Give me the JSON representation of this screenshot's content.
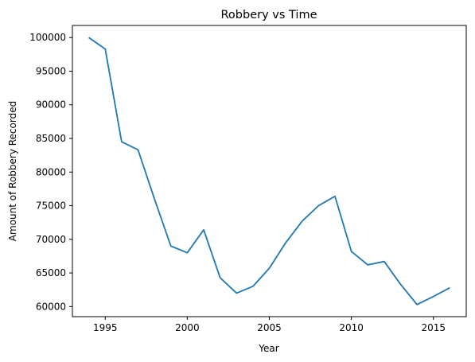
{
  "chart_data": {
    "type": "line",
    "title": "Robbery vs Time",
    "xlabel": "Year",
    "ylabel": "Amount of Robbery Recorded",
    "xlim": [
      1993,
      2017
    ],
    "ylim": [
      58500,
      101800
    ],
    "xticks": [
      1995,
      2000,
      2005,
      2010,
      2015
    ],
    "yticks": [
      60000,
      65000,
      70000,
      75000,
      80000,
      85000,
      90000,
      95000,
      100000
    ],
    "grid": false,
    "colors": {
      "line": "#1f77b4",
      "axes": "#000000",
      "background": "#ffffff"
    },
    "series": [
      {
        "x": [
          1994,
          1995,
          1996,
          1997,
          1998,
          1999,
          2000,
          2001,
          2002,
          2003,
          2004,
          2005,
          2006,
          2007,
          2008,
          2009,
          2010,
          2011,
          2012,
          2013,
          2014,
          2015,
          2016
        ],
        "values": [
          100000,
          98300,
          84500,
          83300,
          76000,
          69000,
          68000,
          71400,
          64300,
          62000,
          63000,
          65700,
          69500,
          72700,
          75000,
          76400,
          68200,
          66200,
          66700,
          63300,
          60300,
          61500,
          62800
        ]
      }
    ]
  }
}
